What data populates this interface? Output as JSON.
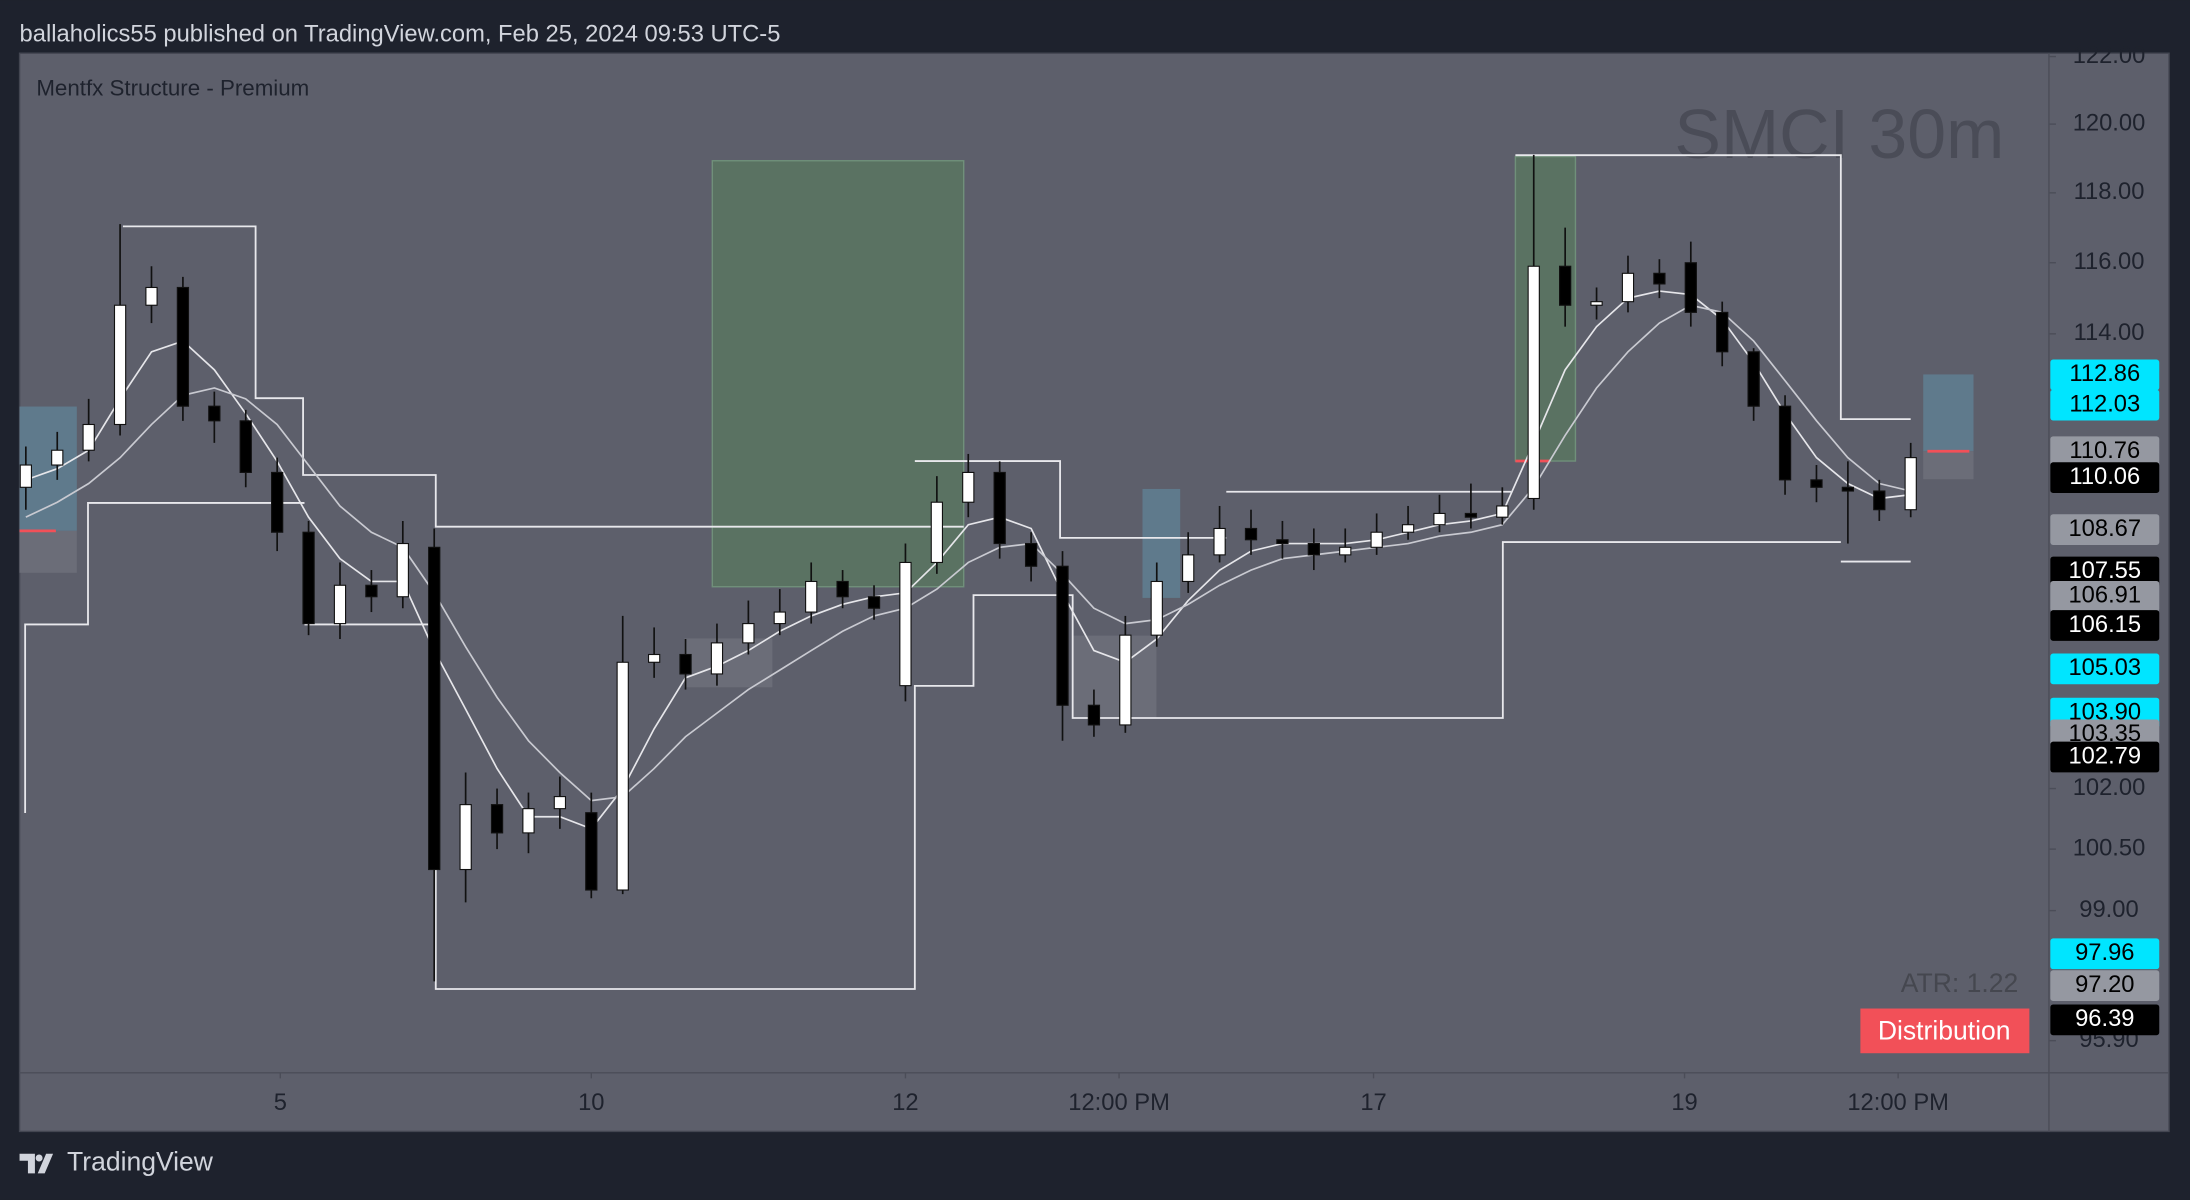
{
  "header": {
    "text": "ballaholics55 published on TradingView.com, Feb 25, 2024 09:53 UTC-5"
  },
  "footer": {
    "brand": "TradingView"
  },
  "chart_data": {
    "type": "candlestick",
    "title": "SMCI 30m",
    "indicator": "Mentfx Structure - Premium",
    "atr_label": "ATR: 1.22",
    "badge": "Distribution",
    "badge_color": "#f25058",
    "log_scale": true,
    "up_color": "#ffffff",
    "down_color": "#000000",
    "xlim": [
      -0.2,
      64.4
    ],
    "ylim": [
      95.15,
      122.1
    ],
    "xticks": [
      {
        "value": 8.1,
        "label": "5"
      },
      {
        "value": 18,
        "label": "10"
      },
      {
        "value": 28,
        "label": "12"
      },
      {
        "value": 34.8,
        "label": "12:00 PM"
      },
      {
        "value": 42.9,
        "label": "17"
      },
      {
        "value": 52.8,
        "label": "19"
      },
      {
        "value": 59.6,
        "label": "12:00 PM"
      }
    ],
    "yticks": [
      {
        "value": 122,
        "label": "122.00"
      },
      {
        "value": 120,
        "label": "120.00"
      },
      {
        "value": 118,
        "label": "118.00"
      },
      {
        "value": 116,
        "label": "116.00"
      },
      {
        "value": 114,
        "label": "114.00"
      },
      {
        "value": 102,
        "label": "102.00"
      },
      {
        "value": 100.5,
        "label": "100.50"
      },
      {
        "value": 99,
        "label": "99.00"
      },
      {
        "value": 95.9,
        "label": "95.90"
      }
    ],
    "open": [
      109.8,
      110.4,
      110.8,
      111.5,
      114.8,
      115.3,
      112.0,
      111.6,
      110.2,
      108.6,
      106.2,
      107.2,
      106.9,
      108.2,
      100.0,
      101.6,
      100.9,
      101.5,
      101.4,
      99.5,
      105.2,
      105.4,
      104.9,
      105.7,
      106.2,
      106.5,
      107.3,
      106.9,
      104.6,
      107.8,
      109.4,
      110.2,
      108.3,
      107.7,
      104.1,
      103.6,
      105.9,
      107.3,
      108.0,
      108.7,
      108.4,
      108.3,
      108.0,
      108.2,
      108.6,
      108.8,
      109.1,
      109.0,
      109.5,
      115.9,
      114.8,
      114.9,
      115.7,
      116.0,
      114.6,
      113.5,
      112.0,
      110.0,
      109.8,
      109.7,
      109.2
    ],
    "high": [
      110.9,
      111.3,
      112.2,
      117.1,
      115.9,
      115.6,
      112.4,
      111.9,
      110.6,
      108.9,
      107.8,
      107.6,
      108.9,
      108.7,
      102.4,
      102.0,
      101.9,
      102.3,
      101.9,
      106.4,
      106.1,
      105.8,
      106.2,
      106.8,
      107.1,
      107.8,
      107.6,
      107.2,
      108.3,
      110.1,
      110.7,
      110.5,
      108.6,
      108.1,
      104.5,
      106.4,
      107.8,
      108.6,
      109.3,
      109.2,
      108.9,
      108.7,
      108.7,
      109.1,
      109.3,
      109.6,
      109.9,
      109.8,
      119.1,
      117.0,
      115.3,
      116.2,
      116.1,
      116.6,
      114.9,
      113.6,
      112.3,
      110.4,
      110.5,
      110.0,
      111.0
    ],
    "low": [
      109.2,
      110.0,
      110.5,
      111.2,
      114.3,
      111.6,
      111.0,
      109.8,
      108.1,
      105.9,
      105.8,
      106.5,
      106.6,
      97.3,
      99.2,
      100.5,
      100.4,
      101.0,
      99.3,
      99.4,
      104.8,
      104.5,
      104.6,
      105.4,
      105.9,
      106.2,
      106.6,
      106.3,
      104.2,
      107.5,
      109.0,
      107.9,
      107.3,
      103.2,
      103.3,
      103.4,
      105.6,
      107.0,
      107.8,
      108.0,
      107.9,
      107.6,
      107.8,
      108.0,
      108.4,
      108.6,
      108.7,
      108.8,
      109.2,
      114.2,
      114.4,
      114.6,
      115.0,
      114.2,
      113.1,
      111.6,
      109.6,
      109.4,
      108.3,
      108.9,
      109.0
    ],
    "close": [
      110.4,
      110.8,
      111.5,
      114.8,
      115.3,
      112.0,
      111.6,
      110.2,
      108.6,
      106.2,
      107.2,
      106.9,
      108.3,
      100.0,
      101.6,
      100.9,
      101.5,
      101.8,
      99.5,
      105.2,
      105.4,
      104.9,
      105.7,
      106.2,
      106.5,
      107.3,
      106.9,
      106.6,
      107.8,
      109.4,
      110.2,
      108.3,
      107.7,
      104.1,
      103.6,
      105.9,
      107.3,
      108.0,
      108.7,
      108.4,
      108.3,
      108.0,
      108.2,
      108.6,
      108.8,
      109.1,
      109.0,
      109.3,
      115.9,
      114.8,
      114.9,
      115.7,
      115.4,
      114.6,
      113.5,
      112.0,
      110.0,
      109.8,
      109.7,
      109.2,
      110.6
    ],
    "series": [
      {
        "color": "#e6e6ea",
        "values": [
          110.0,
          110.3,
          110.8,
          112.2,
          113.5,
          113.8,
          113.0,
          111.8,
          110.5,
          109.0,
          107.9,
          107.3,
          107.3,
          105.5,
          104.0,
          102.5,
          101.3,
          101.3,
          101.0,
          102.0,
          103.5,
          104.8,
          105.1,
          105.5,
          106.0,
          106.4,
          106.7,
          106.9,
          107.0,
          107.8,
          108.8,
          109.0,
          108.7,
          107.0,
          105.5,
          105.2,
          105.8,
          106.8,
          107.6,
          108.1,
          108.3,
          108.3,
          108.3,
          108.4,
          108.6,
          108.8,
          108.9,
          109.1,
          111.0,
          113.0,
          114.2,
          115.0,
          115.2,
          115.1,
          114.4,
          113.2,
          111.8,
          110.6,
          109.9,
          109.5,
          109.6
        ]
      },
      {
        "color": "#c9cad1",
        "values": [
          109.0,
          109.4,
          109.9,
          110.6,
          111.5,
          112.3,
          112.5,
          112.2,
          111.5,
          110.4,
          109.3,
          108.6,
          108.2,
          107.0,
          105.6,
          104.3,
          103.2,
          102.4,
          101.7,
          101.8,
          102.5,
          103.3,
          103.9,
          104.5,
          105.0,
          105.5,
          106.0,
          106.4,
          106.6,
          107.1,
          107.8,
          108.2,
          108.3,
          107.5,
          106.6,
          106.2,
          106.3,
          106.7,
          107.2,
          107.6,
          107.9,
          108.0,
          108.1,
          108.2,
          108.3,
          108.5,
          108.6,
          108.8,
          109.8,
          111.2,
          112.5,
          113.5,
          114.3,
          114.8,
          114.6,
          113.8,
          112.7,
          111.6,
          110.6,
          109.9,
          109.7
        ]
      }
    ],
    "price_tags": [
      {
        "value": 112.86,
        "color": "#00e5ff"
      },
      {
        "value": 112.03,
        "color": "#00e5ff"
      },
      {
        "value": 110.76,
        "color": "#9598a1"
      },
      {
        "value": 110.06,
        "color": "#000000"
      },
      {
        "value": 108.67,
        "color": "#9598a1"
      },
      {
        "value": 107.55,
        "color": "#000000"
      },
      {
        "value": 106.91,
        "color": "#9598a1"
      },
      {
        "value": 106.15,
        "color": "#000000"
      },
      {
        "value": 105.03,
        "color": "#00e5ff"
      },
      {
        "value": 103.9,
        "label": "103.90",
        "color": "#00e5ff"
      },
      {
        "value": 103.35,
        "color": "#9598a1"
      },
      {
        "value": 102.79,
        "color": "#000000"
      },
      {
        "value": 97.96,
        "color": "#00e5ff"
      },
      {
        "value": 97.2,
        "label": "97.20",
        "color": "#9598a1"
      },
      {
        "value": 96.39,
        "color": "#000000"
      }
    ]
  }
}
